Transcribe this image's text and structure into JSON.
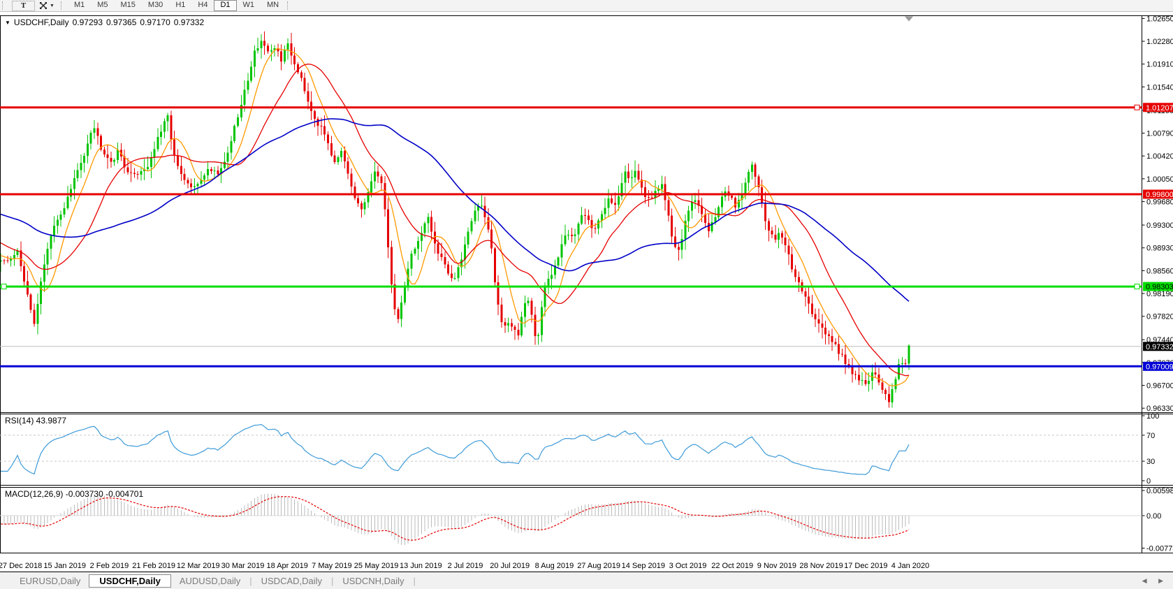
{
  "toolbar": {
    "text_tool_label": "T",
    "timeframes": [
      "M1",
      "M5",
      "M15",
      "M30",
      "H1",
      "H4",
      "D1",
      "W1",
      "MN"
    ],
    "active_timeframe": "D1"
  },
  "chart": {
    "title": {
      "symbol": "USDCHF,Daily",
      "open": "0.97293",
      "high": "0.97365",
      "low": "0.97170",
      "close": "0.97332"
    },
    "y_axis_ticks": [
      "1.02650",
      "1.02280",
      "1.01910",
      "1.01540",
      "1.01160",
      "1.00790",
      "1.00420",
      "1.00050",
      "0.99680",
      "0.99300",
      "0.98930",
      "0.98560",
      "0.98190",
      "0.97820",
      "0.97440",
      "0.97070",
      "0.96700",
      "0.96330"
    ],
    "x_axis_dates": [
      "27 Dec 2018",
      "15 Jan 2019",
      "2 Feb 2019",
      "21 Feb 2019",
      "12 Mar 2019",
      "30 Mar 2019",
      "18 Apr 2019",
      "7 May 2019",
      "25 May 2019",
      "13 Jun 2019",
      "2 Jul 2019",
      "20 Jul 2019",
      "8 Aug 2019",
      "27 Aug 2019",
      "14 Sep 2019",
      "3 Oct 2019",
      "22 Oct 2019",
      "9 Nov 2019",
      "28 Nov 2019",
      "17 Dec 2019",
      "4 Jan 2020"
    ],
    "colors": {
      "up": "#00C400",
      "down": "#E60000",
      "rsi": "#3E9BD8",
      "macd_hist": "#BBBBBB",
      "macd_signal": "#E60000",
      "current_price_line": "#BDBDBD"
    },
    "levels": [
      {
        "name": "resistance-line-1",
        "price": 1.01207,
        "label": "1.01207",
        "color": "#E60000",
        "text_color": "#FFFFFF",
        "handles": "right"
      },
      {
        "name": "resistance-line-2",
        "price": 0.998,
        "label": "0.99800",
        "color": "#E60000",
        "text_color": "#FFFFFF",
        "handles": "none"
      },
      {
        "name": "support-line-green",
        "price": 0.98303,
        "label": "0.98303",
        "color": "#00DD00",
        "text_color": "#000000",
        "handles": "both"
      },
      {
        "name": "support-line-blue",
        "price": 0.97009,
        "label": "0.97009",
        "color": "#0000D6",
        "text_color": "#FFFFFF",
        "handles": "none"
      }
    ],
    "current_price": {
      "price": 0.97332,
      "label": "0.97332",
      "bg": "#000000",
      "text_color": "#FFFFFF"
    }
  },
  "rsi": {
    "label": "RSI(14) 43.9877",
    "period": 14,
    "value": 43.9877,
    "ticks": [
      "100",
      "70",
      "30",
      "0"
    ],
    "tick_values": [
      100,
      70,
      30,
      0
    ],
    "level_lines": [
      70,
      30
    ]
  },
  "macd": {
    "label": "MACD(12,26,9) -0.003730 -0.004701",
    "fast": 12,
    "slow": 26,
    "signal": 9,
    "value": -0.00373,
    "signal_value": -0.004701,
    "ticks": [
      "0.005986",
      "0.00",
      "-0.00773"
    ],
    "tick_values": [
      0.005986,
      0,
      -0.00773
    ]
  },
  "tabs": {
    "items": [
      "EURUSD,Daily",
      "USDCHF,Daily",
      "AUDUSD,Daily",
      "USDCAD,Daily",
      "USDCNH,Daily"
    ],
    "active": "USDCHF,Daily",
    "scroll_left_icon": "◀",
    "scroll_right_icon": "▶"
  },
  "chart_data": {
    "type": "candlestick",
    "symbol": "USDCHF",
    "timeframe": "Daily",
    "ohlc_current": {
      "open": 0.97293,
      "high": 0.97365,
      "low": 0.9717,
      "close": 0.97332
    },
    "y_axis_range": [
      0.9627,
      1.027
    ],
    "rsi_range": [
      0,
      100
    ],
    "macd_range": [
      -0.00773,
      0.005986
    ],
    "num_candles": 272,
    "price_path": [
      [
        -290,
        0.996
      ],
      [
        -150,
        0.9992
      ],
      [
        -60,
        0.9906
      ],
      [
        6,
        0.9869
      ],
      [
        25,
        0.9886
      ],
      [
        40,
        0.9818
      ],
      [
        48,
        0.9761
      ],
      [
        60,
        0.9852
      ],
      [
        75,
        0.992
      ],
      [
        90,
        0.9954
      ],
      [
        105,
        0.9999
      ],
      [
        120,
        1.0044
      ],
      [
        133,
        1.0095
      ],
      [
        145,
        1.0056
      ],
      [
        160,
        1.0033
      ],
      [
        170,
        1.005
      ],
      [
        185,
        1.001
      ],
      [
        200,
        1.0016
      ],
      [
        212,
        1.0027
      ],
      [
        225,
        1.0067
      ],
      [
        240,
        1.0106
      ],
      [
        252,
        1.0027
      ],
      [
        265,
        0.9999
      ],
      [
        278,
        0.9988
      ],
      [
        290,
        1.001
      ],
      [
        300,
        1.0022
      ],
      [
        312,
        1.0016
      ],
      [
        322,
        1.0033
      ],
      [
        335,
        1.0084
      ],
      [
        345,
        1.0123
      ],
      [
        355,
        1.0169
      ],
      [
        365,
        1.0214
      ],
      [
        375,
        1.0231
      ],
      [
        385,
        1.0203
      ],
      [
        395,
        1.022
      ],
      [
        403,
        1.0197
      ],
      [
        412,
        1.0225
      ],
      [
        422,
        1.0191
      ],
      [
        432,
        1.0169
      ],
      [
        440,
        1.0135
      ],
      [
        450,
        1.0106
      ],
      [
        458,
        1.0089
      ],
      [
        468,
        1.0072
      ],
      [
        478,
        1.0033
      ],
      [
        488,
        1.005
      ],
      [
        498,
        1.001
      ],
      [
        508,
        0.9971
      ],
      [
        518,
        0.9954
      ],
      [
        528,
        0.9988
      ],
      [
        538,
        1.0016
      ],
      [
        548,
        0.9999
      ],
      [
        553,
        0.992
      ],
      [
        560,
        0.984
      ],
      [
        568,
        0.9767
      ],
      [
        575,
        0.9806
      ],
      [
        582,
        0.9852
      ],
      [
        590,
        0.9886
      ],
      [
        598,
        0.9903
      ],
      [
        605,
        0.992
      ],
      [
        612,
        0.9942
      ],
      [
        620,
        0.9908
      ],
      [
        628,
        0.9886
      ],
      [
        635,
        0.9874
      ],
      [
        642,
        0.9852
      ],
      [
        650,
        0.984
      ],
      [
        658,
        0.9863
      ],
      [
        665,
        0.9897
      ],
      [
        672,
        0.9931
      ],
      [
        680,
        0.9954
      ],
      [
        688,
        0.9965
      ],
      [
        695,
        0.9942
      ],
      [
        702,
        0.9908
      ],
      [
        708,
        0.984
      ],
      [
        715,
        0.9784
      ],
      [
        722,
        0.9761
      ],
      [
        728,
        0.9772
      ],
      [
        735,
        0.9761
      ],
      [
        742,
        0.975
      ],
      [
        748,
        0.9795
      ],
      [
        755,
        0.9818
      ],
      [
        762,
        0.9784
      ],
      [
        768,
        0.9727
      ],
      [
        775,
        0.9795
      ],
      [
        782,
        0.984
      ],
      [
        790,
        0.9852
      ],
      [
        798,
        0.9874
      ],
      [
        805,
        0.9897
      ],
      [
        812,
        0.992
      ],
      [
        820,
        0.9908
      ],
      [
        828,
        0.9931
      ],
      [
        835,
        0.9954
      ],
      [
        842,
        0.9942
      ],
      [
        850,
        0.992
      ],
      [
        858,
        0.9937
      ],
      [
        865,
        0.9954
      ],
      [
        872,
        0.9976
      ],
      [
        880,
        0.9965
      ],
      [
        888,
        0.9988
      ],
      [
        895,
        1.0016
      ],
      [
        902,
        1.0005
      ],
      [
        910,
        1.0022
      ],
      [
        918,
        0.9993
      ],
      [
        925,
        0.9965
      ],
      [
        932,
        0.9976
      ],
      [
        940,
        0.9988
      ],
      [
        948,
        0.9999
      ],
      [
        955,
        0.9954
      ],
      [
        962,
        0.9908
      ],
      [
        970,
        0.9886
      ],
      [
        978,
        0.992
      ],
      [
        985,
        0.9954
      ],
      [
        992,
        0.9971
      ],
      [
        1000,
        0.9959
      ],
      [
        1008,
        0.9942
      ],
      [
        1015,
        0.992
      ],
      [
        1022,
        0.9942
      ],
      [
        1030,
        0.9965
      ],
      [
        1038,
        0.9988
      ],
      [
        1045,
        0.9976
      ],
      [
        1052,
        0.9959
      ],
      [
        1060,
        0.9976
      ],
      [
        1068,
        0.9999
      ],
      [
        1075,
        1.0027
      ],
      [
        1082,
        1.001
      ],
      [
        1088,
        0.9976
      ],
      [
        1095,
        0.9942
      ],
      [
        1102,
        0.992
      ],
      [
        1108,
        0.9903
      ],
      [
        1115,
        0.992
      ],
      [
        1122,
        0.9903
      ],
      [
        1130,
        0.9874
      ],
      [
        1140,
        0.984
      ],
      [
        1150,
        0.9818
      ],
      [
        1160,
        0.9795
      ],
      [
        1172,
        0.9772
      ],
      [
        1185,
        0.975
      ],
      [
        1200,
        0.9727
      ],
      [
        1215,
        0.9699
      ],
      [
        1228,
        0.9682
      ],
      [
        1240,
        0.9671
      ],
      [
        1250,
        0.9693
      ],
      [
        1258,
        0.9671
      ],
      [
        1266,
        0.9659
      ],
      [
        1273,
        0.9645
      ],
      [
        1280,
        0.9671
      ],
      [
        1288,
        0.9716
      ],
      [
        1295,
        0.9699
      ],
      [
        1301,
        0.9733
      ]
    ],
    "overlays": [
      {
        "name": "ma-fast-line",
        "period": 8,
        "color": "#FF9900",
        "width": 1.3
      },
      {
        "name": "ma-mid-line",
        "period": 21,
        "color": "#E60000",
        "width": 1.3
      },
      {
        "name": "ma-slow-line",
        "period": 55,
        "color": "#0000C8",
        "width": 1.6
      }
    ]
  }
}
